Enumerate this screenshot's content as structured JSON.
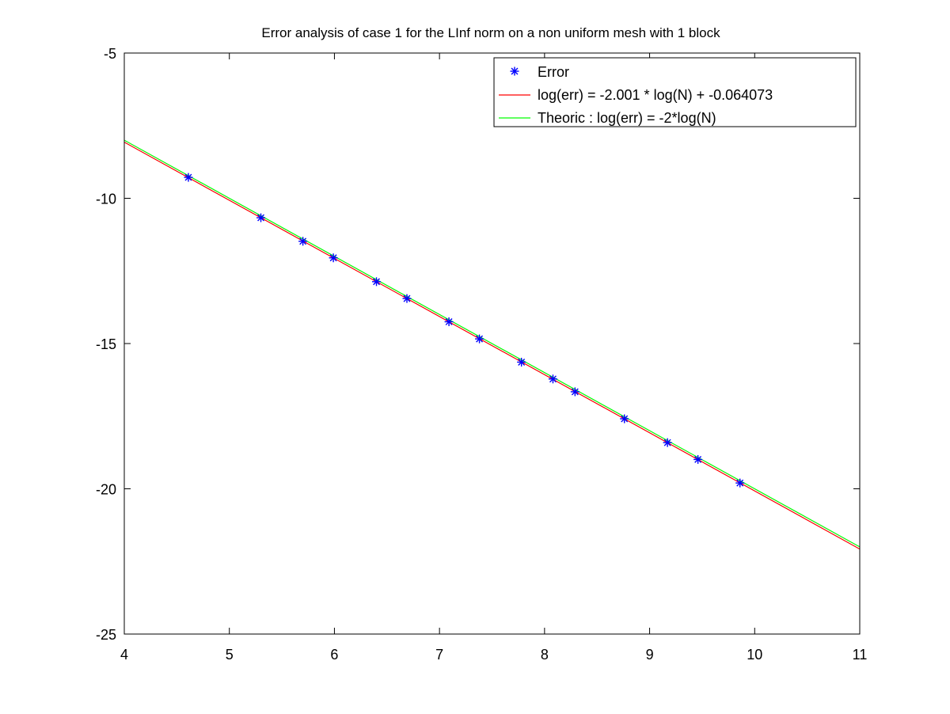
{
  "chart_data": {
    "type": "line",
    "title": "Error analysis of case 1 for the LInf norm on a non uniform mesh with 1 block",
    "xlabel": "",
    "ylabel": "",
    "xlim": [
      4,
      11
    ],
    "ylim": [
      -25,
      -5
    ],
    "xticks": [
      4,
      5,
      6,
      7,
      8,
      9,
      10,
      11
    ],
    "yticks": [
      -5,
      -10,
      -15,
      -20,
      -25
    ],
    "grid": false,
    "legend_position": "top-right",
    "series": [
      {
        "name": "Error",
        "kind": "scatter",
        "marker": "asterisk",
        "color": "#0000ff",
        "x": [
          4.61,
          5.3,
          5.7,
          5.99,
          6.4,
          6.69,
          7.09,
          7.38,
          7.78,
          8.08,
          8.29,
          8.76,
          9.17,
          9.46,
          9.86
        ],
        "y": [
          -9.28,
          -10.67,
          -11.48,
          -12.05,
          -12.87,
          -13.45,
          -14.25,
          -14.84,
          -15.64,
          -16.22,
          -16.66,
          -17.59,
          -18.41,
          -18.99,
          -19.8
        ]
      },
      {
        "name": "log(err) = -2.001 * log(N) + -0.064073",
        "kind": "line",
        "color": "#ff0000",
        "slope": -2.001,
        "intercept": -0.064073
      },
      {
        "name": "Theoric : log(err) = -2*log(N)",
        "kind": "line",
        "color": "#00ff00",
        "slope": -2,
        "intercept": 0
      }
    ]
  }
}
